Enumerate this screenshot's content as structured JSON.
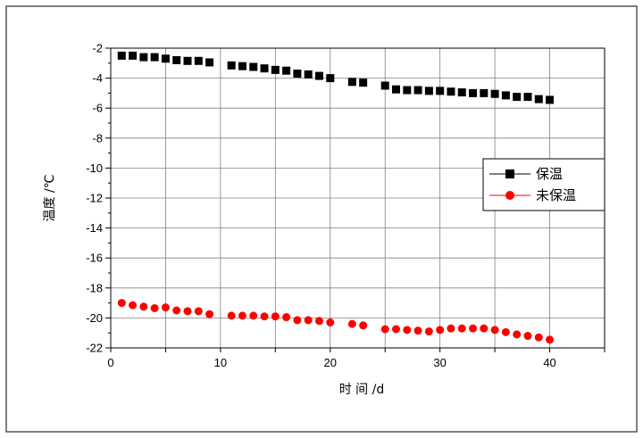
{
  "chart_data": {
    "type": "scatter",
    "xlabel": "时 间 /d",
    "ylabel": "温度 /℃",
    "xlim": [
      0,
      45
    ],
    "ylim": [
      -22,
      -2
    ],
    "xticks": [
      0,
      10,
      20,
      30,
      40
    ],
    "yticks": [
      -2,
      -4,
      -6,
      -8,
      -10,
      -12,
      -14,
      -16,
      -18,
      -20,
      -22
    ],
    "grid": true,
    "legend_position": "right-middle",
    "series": [
      {
        "name": "保温",
        "color": "#000000",
        "marker": "square",
        "x": [
          1,
          2,
          3,
          4,
          5,
          6,
          7,
          8,
          9,
          11,
          12,
          13,
          14,
          15,
          16,
          17,
          18,
          19,
          20,
          22,
          23,
          25,
          26,
          27,
          28,
          29,
          30,
          31,
          32,
          33,
          34,
          35,
          36,
          37,
          38,
          39,
          40
        ],
        "y": [
          -2.5,
          -2.5,
          -2.6,
          -2.6,
          -2.7,
          -2.8,
          -2.85,
          -2.85,
          -2.95,
          -3.15,
          -3.2,
          -3.25,
          -3.35,
          -3.45,
          -3.5,
          -3.7,
          -3.75,
          -3.85,
          -4.0,
          -4.25,
          -4.3,
          -4.5,
          -4.75,
          -4.8,
          -4.8,
          -4.85,
          -4.85,
          -4.9,
          -4.95,
          -5.0,
          -5.0,
          -5.05,
          -5.15,
          -5.25,
          -5.25,
          -5.4,
          -5.45
        ]
      },
      {
        "name": "未保温",
        "color": "#ff0000",
        "marker": "circle",
        "x": [
          1,
          2,
          3,
          4,
          5,
          6,
          7,
          8,
          9,
          11,
          12,
          13,
          14,
          15,
          16,
          17,
          18,
          19,
          20,
          22,
          23,
          25,
          26,
          27,
          28,
          29,
          30,
          31,
          32,
          33,
          34,
          35,
          36,
          37,
          38,
          39,
          40
        ],
        "y": [
          -19.0,
          -19.15,
          -19.25,
          -19.35,
          -19.3,
          -19.5,
          -19.55,
          -19.55,
          -19.75,
          -19.85,
          -19.85,
          -19.85,
          -19.9,
          -19.9,
          -19.95,
          -20.15,
          -20.15,
          -20.2,
          -20.3,
          -20.4,
          -20.5,
          -20.75,
          -20.75,
          -20.8,
          -20.85,
          -20.9,
          -20.8,
          -20.7,
          -20.7,
          -20.7,
          -20.7,
          -20.8,
          -20.95,
          -21.1,
          -21.2,
          -21.3,
          -21.45
        ]
      }
    ]
  }
}
